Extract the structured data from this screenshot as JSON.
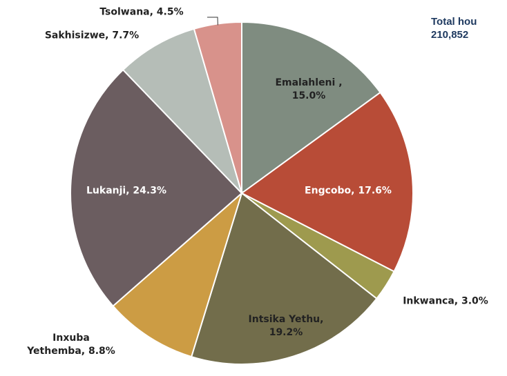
{
  "chart_data": {
    "type": "pie",
    "categories": [
      "Emalahleni ,",
      "Engcobo,",
      "Inkwanca,",
      "Intsika Yethu,",
      "Inxuba Yethemba,",
      "Lukanji,",
      "Sakhisizwe,",
      "Tsolwana,"
    ],
    "values": [
      15.0,
      17.6,
      3.0,
      19.2,
      8.8,
      24.3,
      7.7,
      4.5
    ],
    "value_labels": [
      "15.0%",
      "17.6%",
      "3.0%",
      "19.2%",
      "8.8%",
      "24.3%",
      "7.7%",
      "4.5%"
    ],
    "colors": [
      "#7f8c80",
      "#b84c37",
      "#9e9a4e",
      "#726d4b",
      "#cc9c44",
      "#6b5d60",
      "#b5bdb7",
      "#d8928b"
    ],
    "annotations": [
      "Total hou",
      "210,852"
    ]
  }
}
